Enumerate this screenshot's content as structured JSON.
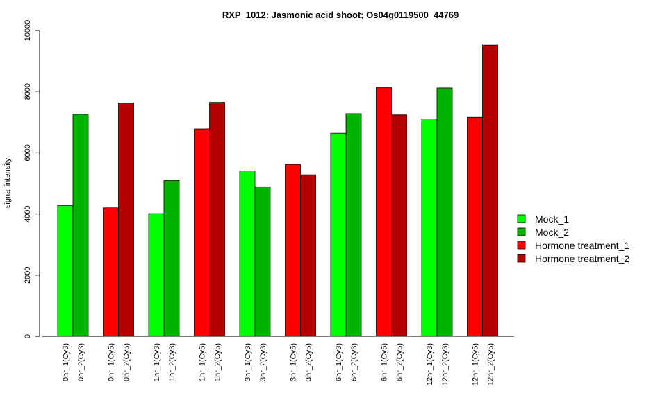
{
  "chart_data": {
    "type": "bar",
    "title": "RXP_1012: Jasmonic acid shoot; Os04g0119500_44769",
    "ylabel": "signal intensity",
    "xlabel": "",
    "ylim": [
      0,
      10000
    ],
    "yticks": [
      0,
      2000,
      4000,
      6000,
      8000,
      10000
    ],
    "grid": false,
    "legend_position": "right",
    "legend": [
      {
        "name": "Mock_1",
        "color": "#00FF00"
      },
      {
        "name": "Mock_2",
        "color": "#00B300"
      },
      {
        "name": "Hormone treatment_1",
        "color": "#FF0000"
      },
      {
        "name": "Hormone treatment_2",
        "color": "#B30000"
      }
    ],
    "groups": [
      {
        "bars": [
          {
            "label": "0hr_1(Cy3)",
            "value": 4280,
            "color": "#00FF00"
          },
          {
            "label": "0hr_2(Cy3)",
            "value": 7260,
            "color": "#00B300"
          }
        ]
      },
      {
        "bars": [
          {
            "label": "0hr_1(Cy5)",
            "value": 4200,
            "color": "#FF0000"
          },
          {
            "label": "0hr_2(Cy5)",
            "value": 7630,
            "color": "#B30000"
          }
        ]
      },
      {
        "bars": [
          {
            "label": "1hr_1(Cy3)",
            "value": 4010,
            "color": "#00FF00"
          },
          {
            "label": "1hr_2(Cy3)",
            "value": 5090,
            "color": "#00B300"
          }
        ]
      },
      {
        "bars": [
          {
            "label": "1hr_1(Cy5)",
            "value": 6780,
            "color": "#FF0000"
          },
          {
            "label": "1hr_2(Cy5)",
            "value": 7650,
            "color": "#B30000"
          }
        ]
      },
      {
        "bars": [
          {
            "label": "3hr_1(Cy3)",
            "value": 5410,
            "color": "#00FF00"
          },
          {
            "label": "3hr_2(Cy3)",
            "value": 4890,
            "color": "#00B300"
          }
        ]
      },
      {
        "bars": [
          {
            "label": "3hr_1(Cy5)",
            "value": 5620,
            "color": "#FF0000"
          },
          {
            "label": "3hr_2(Cy5)",
            "value": 5280,
            "color": "#B30000"
          }
        ]
      },
      {
        "bars": [
          {
            "label": "6hr_1(Cy3)",
            "value": 6640,
            "color": "#00FF00"
          },
          {
            "label": "6hr_2(Cy3)",
            "value": 7280,
            "color": "#00B300"
          }
        ]
      },
      {
        "bars": [
          {
            "label": "6hr_1(Cy5)",
            "value": 8140,
            "color": "#FF0000"
          },
          {
            "label": "6hr_2(Cy5)",
            "value": 7240,
            "color": "#B30000"
          }
        ]
      },
      {
        "bars": [
          {
            "label": "12hr_1(Cy3)",
            "value": 7110,
            "color": "#00FF00"
          },
          {
            "label": "12hr_2(Cy3)",
            "value": 8120,
            "color": "#00B300"
          }
        ]
      },
      {
        "bars": [
          {
            "label": "12hr_1(Cy5)",
            "value": 7160,
            "color": "#FF0000"
          },
          {
            "label": "12hr_2(Cy5)",
            "value": 9520,
            "color": "#B30000"
          }
        ]
      }
    ]
  }
}
